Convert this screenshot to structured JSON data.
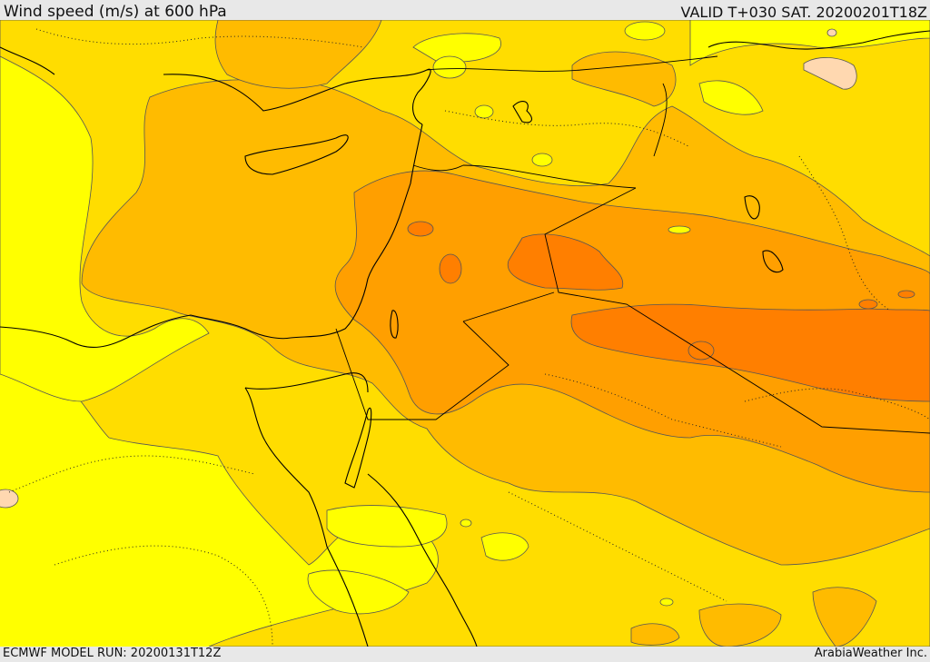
{
  "header": {
    "title": "Wind speed (m/s) at 600 hPa",
    "valid": "VALID T+030 SAT. 20200201T18Z"
  },
  "footer": {
    "model_run": "ECMWF MODEL RUN: 20200131T12Z",
    "credit": "ArabiaWeather Inc."
  },
  "map": {
    "colors": {
      "band_1": "#ffff00",
      "band_2": "#ffdd00",
      "band_3": "#ffbb00",
      "band_4": "#ff9f00",
      "band_5": "#ff7f00",
      "band_low": "#ffd8b0"
    }
  }
}
